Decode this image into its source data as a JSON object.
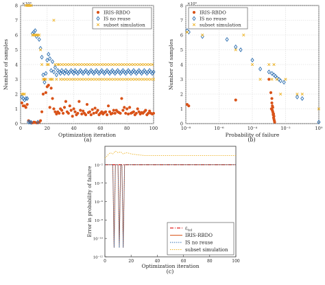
{
  "chart_data": [
    {
      "panel": "(a)",
      "type": "scatter",
      "xlabel": "Optimization iteration",
      "ylabel": "Number of samples",
      "yexponent_label": "×10⁴",
      "xlim": [
        0,
        100
      ],
      "ylim": [
        0,
        80000
      ],
      "xticks": [
        0,
        20,
        40,
        60,
        80,
        100
      ],
      "yticks": [
        0,
        10000,
        20000,
        30000,
        40000,
        50000,
        60000,
        70000,
        80000
      ],
      "ytick_labels": [
        "0",
        "1",
        "2",
        "3",
        "4",
        "5",
        "6",
        "7",
        "8"
      ],
      "grid": true,
      "legend_position": "top-right",
      "series": [
        {
          "name": "IRIS-RBDO",
          "marker": "circle",
          "color": "#d95319",
          "x": [
            1,
            2,
            3,
            4,
            5,
            6,
            7,
            8,
            9,
            10,
            11,
            12,
            13,
            14,
            15,
            16,
            17,
            18,
            19,
            20,
            21,
            22,
            23,
            24,
            25,
            26,
            27,
            28,
            29,
            30,
            31,
            32,
            33,
            34,
            35,
            36,
            37,
            38,
            39,
            40,
            41,
            42,
            43,
            44,
            45,
            46,
            47,
            48,
            49,
            50,
            51,
            52,
            53,
            54,
            55,
            56,
            57,
            58,
            59,
            60,
            61,
            62,
            63,
            64,
            65,
            66,
            67,
            68,
            69,
            70,
            71,
            72,
            73,
            74,
            75,
            76,
            77,
            78,
            79,
            80,
            81,
            82,
            83,
            84,
            85,
            86,
            87,
            88,
            89,
            90,
            91,
            92,
            93,
            94,
            95,
            96,
            97,
            98,
            99,
            100
          ],
          "y": [
            14000,
            12000,
            12000,
            11000,
            13000,
            2000,
            1000,
            500,
            500,
            1000,
            800,
            500,
            600,
            900,
            2000,
            8000,
            20000,
            30000,
            21000,
            25000,
            26000,
            11000,
            24000,
            17000,
            10000,
            8000,
            6500,
            8000,
            7000,
            10000,
            9000,
            7000,
            11000,
            15000,
            8000,
            7000,
            12000,
            9000,
            5000,
            10000,
            8000,
            6000,
            7000,
            15000,
            9000,
            6500,
            8500,
            7000,
            6000,
            13000,
            7500,
            8000,
            6000,
            9500,
            7000,
            10500,
            7500,
            9000,
            6000,
            7000,
            8000,
            6500,
            7500,
            8000,
            6000,
            12000,
            8000,
            6500,
            7000,
            9000,
            7000,
            9000,
            8000,
            7500,
            7000,
            17000,
            9000,
            11000,
            7000,
            10000,
            6500,
            11000,
            7000,
            7500,
            8000,
            6000,
            7000,
            10000,
            8000,
            6500,
            7500,
            7000,
            8000,
            9000,
            6000,
            7000,
            8500,
            7000,
            6500,
            7000
          ]
        },
        {
          "name": "IS no reuse",
          "marker": "diamond",
          "color": "#2e6fb0",
          "x": [
            1,
            2,
            3,
            4,
            5,
            6,
            7,
            8,
            9,
            10,
            11,
            12,
            13,
            14,
            15,
            16,
            17,
            18,
            19,
            20,
            21,
            22,
            23,
            24,
            25,
            26,
            27,
            28,
            29,
            30,
            31,
            32,
            33,
            34,
            35,
            36,
            37,
            38,
            39,
            40,
            41,
            42,
            43,
            44,
            45,
            46,
            47,
            48,
            49,
            50,
            51,
            52,
            53,
            54,
            55,
            56,
            57,
            58,
            59,
            60,
            61,
            62,
            63,
            64,
            65,
            66,
            67,
            68,
            69,
            70,
            71,
            72,
            73,
            74,
            75,
            76,
            77,
            78,
            79,
            80,
            81,
            82,
            83,
            84,
            85,
            86,
            87,
            88,
            89,
            90,
            91,
            92,
            93,
            94,
            95,
            96,
            97,
            98,
            99,
            100
          ],
          "y": [
            18000,
            17000,
            16000,
            17000,
            17000,
            1000,
            1000,
            800,
            61000,
            62000,
            63000,
            59000,
            1000,
            57000,
            51000,
            45000,
            33000,
            28000,
            34000,
            43000,
            47000,
            44000,
            36000,
            42000,
            35000,
            38000,
            33000,
            36000,
            35000,
            34000,
            36000,
            35000,
            34000,
            36000,
            35000,
            34000,
            35000,
            36000,
            35000,
            34000,
            36000,
            35000,
            34000,
            35000,
            36000,
            35000,
            34000,
            35000,
            36000,
            35000,
            34000,
            35000,
            36000,
            35000,
            34000,
            35000,
            36000,
            35000,
            34000,
            35000,
            36000,
            35000,
            34000,
            35000,
            36000,
            35000,
            34000,
            35000,
            36000,
            35000,
            34000,
            35000,
            36000,
            35000,
            34000,
            35000,
            36000,
            35000,
            34000,
            35000,
            36000,
            35000,
            34000,
            35000,
            36000,
            35000,
            34000,
            35000,
            36000,
            35000,
            34000,
            35000,
            36000,
            35000,
            34000,
            35000,
            36000,
            35000,
            34000,
            35000
          ]
        },
        {
          "name": "subset simulation",
          "marker": "x",
          "color": "#edb120",
          "x": [
            1,
            2,
            3,
            4,
            5,
            6,
            7,
            8,
            9,
            10,
            11,
            12,
            13,
            14,
            15,
            16,
            17,
            18,
            19,
            20,
            21,
            22,
            23,
            24,
            25,
            26,
            27,
            28,
            29,
            30,
            31,
            32,
            33,
            34,
            35,
            36,
            37,
            38,
            39,
            40,
            41,
            42,
            43,
            44,
            45,
            46,
            47,
            48,
            49,
            50,
            51,
            52,
            53,
            54,
            55,
            56,
            57,
            58,
            59,
            60,
            61,
            62,
            63,
            64,
            65,
            66,
            67,
            68,
            69,
            70,
            71,
            72,
            73,
            74,
            75,
            76,
            77,
            78,
            79,
            80,
            81,
            82,
            83,
            84,
            85,
            86,
            87,
            88,
            89,
            90,
            91,
            92,
            93,
            94,
            95,
            96,
            97,
            98,
            99,
            100
          ],
          "y": [
            20000,
            20000,
            20000,
            80000,
            80000,
            80000,
            80000,
            80000,
            60000,
            60000,
            60000,
            60000,
            60000,
            60000,
            50000,
            40000,
            30000,
            30000,
            30000,
            40000,
            40000,
            30000,
            30000,
            30000,
            70000,
            40000,
            30000,
            40000,
            40000,
            30000,
            40000,
            30000,
            40000,
            30000,
            40000,
            30000,
            40000,
            30000,
            40000,
            30000,
            40000,
            30000,
            40000,
            30000,
            40000,
            30000,
            40000,
            30000,
            40000,
            30000,
            40000,
            30000,
            40000,
            30000,
            40000,
            30000,
            40000,
            30000,
            40000,
            30000,
            40000,
            30000,
            40000,
            30000,
            40000,
            30000,
            40000,
            30000,
            40000,
            30000,
            40000,
            30000,
            40000,
            30000,
            40000,
            30000,
            40000,
            30000,
            40000,
            30000,
            40000,
            30000,
            40000,
            30000,
            40000,
            30000,
            40000,
            30000,
            40000,
            30000,
            40000,
            30000,
            40000,
            30000,
            40000,
            30000,
            40000,
            30000,
            40000,
            30000
          ]
        }
      ]
    },
    {
      "panel": "(b)",
      "type": "scatter",
      "xlabel": "Probability of failure",
      "ylabel": "Number of samples",
      "yexponent_label": "×10⁴",
      "xscale": "log",
      "xlim": [
        1e-08,
        1
      ],
      "ylim": [
        0,
        80000
      ],
      "xtick_labels": [
        "10⁻⁸",
        "10⁻⁶",
        "10⁻⁴",
        "10⁻²",
        "10⁰"
      ],
      "ytick_labels": [
        "0",
        "1",
        "2",
        "3",
        "4",
        "5",
        "6",
        "7",
        "8"
      ],
      "grid": true,
      "legend_position": "top-left",
      "series": [
        {
          "name": "IRIS-RBDO",
          "marker": "circle",
          "color": "#d95319",
          "x": [
            1.2e-08,
            1.5e-08,
            1e-05,
            0.001,
            0.0013,
            0.0015,
            0.0016,
            0.0017,
            0.0018,
            0.0019,
            0.002,
            0.0021,
            0.0014,
            0.0016,
            0.0018,
            0.002,
            0.0015,
            0.0017,
            0.0019,
            0.0022
          ],
          "y": [
            13000,
            12000,
            16000,
            30000,
            21000,
            17000,
            12000,
            8000,
            6000,
            4000,
            3000,
            2000,
            10000,
            9000,
            7000,
            5000,
            14000,
            11000,
            6500,
            1000
          ]
        },
        {
          "name": "IS no reuse",
          "marker": "diamond",
          "color": "#2e6fb0",
          "x": [
            1.2e-08,
            1.5e-08,
            1e-07,
            3e-06,
            1e-05,
            2e-05,
            0.0001,
            0.0003,
            0.001,
            0.0015,
            0.002,
            0.0025,
            0.003,
            0.004,
            0.005,
            0.008,
            0.05,
            0.1,
            1
          ],
          "y": [
            63000,
            62000,
            59000,
            57000,
            52000,
            50000,
            43000,
            37000,
            35000,
            34000,
            33000,
            32000,
            31000,
            30000,
            29000,
            28000,
            18000,
            17000,
            1000
          ]
        },
        {
          "name": "subset simulation",
          "marker": "x",
          "color": "#edb120",
          "x": [
            1.2e-08,
            1e-07,
            3e-06,
            1e-05,
            3e-05,
            0.0001,
            0.0003,
            0.001,
            0.0015,
            0.002,
            0.003,
            0.005,
            0.01,
            0.05,
            0.1,
            1
          ],
          "y": [
            62000,
            60000,
            70000,
            50000,
            60000,
            40000,
            30000,
            40000,
            30000,
            40000,
            30000,
            20000,
            30000,
            20000,
            20000,
            10000
          ]
        }
      ]
    },
    {
      "panel": "(c)",
      "type": "line",
      "xlabel": "Optimization iteration",
      "ylabel": "Error in probability of failure",
      "yscale": "log",
      "xlim": [
        0,
        100
      ],
      "ylim": [
        1e-12,
        1
      ],
      "xticks": [
        0,
        20,
        40,
        60,
        80,
        100
      ],
      "ytick_labels": [
        "10⁻¹²",
        "10⁻¹⁰",
        "10⁻⁸",
        "10⁻⁶",
        "10⁻⁴",
        "10⁻²"
      ],
      "grid": false,
      "legend_position": "bottom-right",
      "series": [
        {
          "name": "ε_tol",
          "style": "dash-dot",
          "color": "#e02020",
          "x": [
            0,
            100
          ],
          "y": [
            0.01,
            0.01
          ]
        },
        {
          "name": "IRIS-RBDO",
          "style": "solid",
          "color": "#d95319",
          "x": [
            0,
            5,
            6,
            7,
            8,
            9,
            10,
            11,
            12,
            13,
            14,
            15,
            16,
            17,
            100
          ],
          "y": [
            0.01,
            0.01,
            0.01,
            1e-11,
            0.01,
            0.01,
            0.01,
            1e-11,
            0.01,
            0.01,
            1e-11,
            0.01,
            0.01,
            0.01,
            0.01
          ]
        },
        {
          "name": "IS no reuse",
          "style": "dotted",
          "color": "#2e6fb0",
          "x": [
            0,
            5,
            6,
            7,
            8,
            9,
            10,
            11,
            12,
            13,
            14,
            15,
            16,
            17,
            100
          ],
          "y": [
            0.01,
            0.01,
            0.01,
            1e-11,
            0.01,
            0.01,
            0.01,
            1e-11,
            0.01,
            0.01,
            1e-11,
            0.01,
            0.01,
            0.01,
            0.01
          ]
        },
        {
          "name": "subset simulation",
          "style": "dotted",
          "color": "#edb120",
          "x": [
            0,
            2,
            4,
            6,
            8,
            10,
            12,
            14,
            16,
            18,
            20,
            25,
            30,
            40,
            60,
            80,
            100
          ],
          "y": [
            0.05,
            0.1,
            0.2,
            0.15,
            0.3,
            0.2,
            0.25,
            0.15,
            0.2,
            0.18,
            0.15,
            0.12,
            0.1,
            0.1,
            0.1,
            0.1,
            0.1
          ]
        }
      ]
    }
  ],
  "captions": [
    "(a)",
    "(b)",
    "(c)"
  ]
}
